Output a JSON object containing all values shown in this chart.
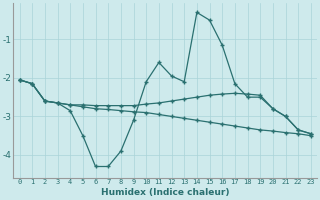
{
  "x": [
    0,
    1,
    2,
    3,
    4,
    5,
    6,
    7,
    8,
    9,
    10,
    11,
    12,
    13,
    14,
    15,
    16,
    17,
    18,
    19,
    20,
    21,
    22,
    23
  ],
  "line1": [
    -2.05,
    -2.15,
    -2.6,
    -2.65,
    -2.85,
    -3.5,
    -4.3,
    -4.3,
    -3.9,
    -3.1,
    -2.1,
    -1.6,
    -1.95,
    -2.1,
    -0.3,
    -0.5,
    -1.15,
    -2.15,
    -2.5,
    -2.5,
    -2.8,
    -3.0,
    -3.35,
    -3.45
  ],
  "line2": [
    -2.05,
    -2.15,
    -2.6,
    -2.65,
    -2.7,
    -2.7,
    -2.72,
    -2.72,
    -2.72,
    -2.72,
    -2.68,
    -2.65,
    -2.6,
    -2.55,
    -2.5,
    -2.45,
    -2.42,
    -2.4,
    -2.42,
    -2.45,
    -2.8,
    -3.0,
    -3.35,
    -3.45
  ],
  "line3": [
    -2.05,
    -2.15,
    -2.6,
    -2.65,
    -2.7,
    -2.75,
    -2.8,
    -2.82,
    -2.85,
    -2.88,
    -2.9,
    -2.95,
    -3.0,
    -3.05,
    -3.1,
    -3.15,
    -3.2,
    -3.25,
    -3.3,
    -3.35,
    -3.38,
    -3.42,
    -3.45,
    -3.5
  ],
  "line_color": "#2a7070",
  "bg_color": "#ceeaec",
  "grid_color": "#aad4d8",
  "xlabel": "Humidex (Indice chaleur)",
  "xlim": [
    -0.5,
    23.5
  ],
  "ylim": [
    -4.6,
    -0.05
  ],
  "yticks": [
    -4,
    -3,
    -2,
    -1
  ],
  "xtick_labels": "0123456789101112131415161718192021222 3",
  "marker": "+",
  "markersize": 3,
  "linewidth": 0.9
}
